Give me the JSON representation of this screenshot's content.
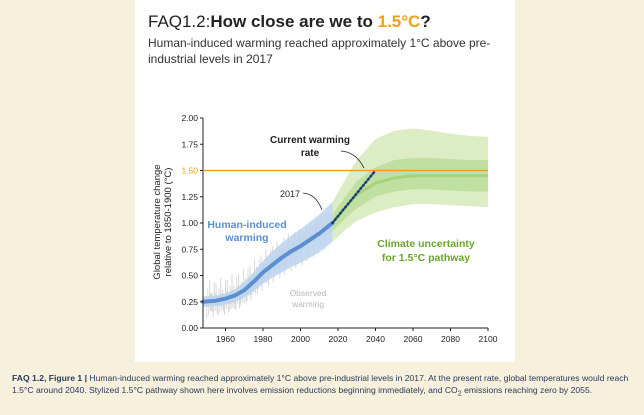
{
  "header": {
    "title_prefix": "FAQ1.2:",
    "title_question": "How close are we to ",
    "title_highlight": "1.5°C",
    "title_suffix": "?",
    "subtitle": "Human-induced warming reached approximately 1°C above pre-industrial levels in 2017"
  },
  "caption": {
    "label": "FAQ 1.2, Figure 1 |",
    "text": " Human-induced warming reached approximately 1°C above pre-industrial levels in 2017. At the present rate, global temperatures would reach 1.5°C around 2040. Stylized 1.5°C pathway shown here involves emission reductions beginning immediately, and CO",
    "sub": "2",
    "text2": " emissions reaching zero by 2055."
  },
  "colors": {
    "accent": "#f0a020",
    "human": "#5b8fd0",
    "human_band": "#bcd3ee",
    "pathway_text": "#6aa52a",
    "band_outer": "#dcedc6",
    "band_inner": "#bfe0a0",
    "band_center": "#a6d27c",
    "observed": "#d8d8d8",
    "dotted": "#1d3f70"
  },
  "chart_data": {
    "type": "line",
    "ylabel": "Global temperature change relative to 1850-1900 (°C)",
    "xlim": [
      1948,
      2100
    ],
    "ylim": [
      0,
      2.0
    ],
    "xticks": [
      "1960",
      "1980",
      "2000",
      "2020",
      "2040",
      "2060",
      "2080",
      "2100"
    ],
    "yticks": [
      "0.00",
      "0.25",
      "0.50",
      "0.75",
      "1.00",
      "1.25",
      "1.50",
      "1.75",
      "2.00"
    ],
    "reference_line": {
      "y": 1.5,
      "label": "1.50"
    },
    "annotations": {
      "current_rate": "Current warming rate",
      "year_2017": "2017",
      "human": "Human-induced warming",
      "climate_uncertainty": "Climate uncertainty for 1.5°C pathway",
      "observed": "Observed warming"
    },
    "series": [
      {
        "name": "Human-induced warming",
        "x": [
          1948,
          1955,
          1960,
          1965,
          1970,
          1975,
          1980,
          1985,
          1990,
          1995,
          2000,
          2005,
          2010,
          2017
        ],
        "y": [
          0.25,
          0.26,
          0.28,
          0.31,
          0.36,
          0.44,
          0.53,
          0.6,
          0.67,
          0.73,
          0.78,
          0.84,
          0.9,
          1.0
        ],
        "lo": [
          0.2,
          0.21,
          0.22,
          0.25,
          0.29,
          0.35,
          0.42,
          0.48,
          0.53,
          0.58,
          0.62,
          0.67,
          0.72,
          0.82
        ],
        "hi": [
          0.3,
          0.31,
          0.33,
          0.37,
          0.44,
          0.53,
          0.64,
          0.73,
          0.81,
          0.88,
          0.94,
          1.01,
          1.08,
          1.2
        ]
      },
      {
        "name": "Current warming rate",
        "x": [
          2017,
          2040
        ],
        "y": [
          1.0,
          1.5
        ]
      },
      {
        "name": "Climate uncertainty for 1.5°C pathway",
        "x": [
          2017,
          2025,
          2030,
          2040,
          2050,
          2060,
          2070,
          2080,
          2090,
          2100
        ],
        "lo_outer": [
          0.82,
          0.95,
          1.02,
          1.1,
          1.15,
          1.18,
          1.18,
          1.17,
          1.16,
          1.15
        ],
        "lo_inner": [
          0.92,
          1.06,
          1.14,
          1.25,
          1.3,
          1.32,
          1.32,
          1.31,
          1.3,
          1.3
        ],
        "mid": [
          1.0,
          1.17,
          1.27,
          1.38,
          1.43,
          1.45,
          1.45,
          1.45,
          1.45,
          1.45
        ],
        "hi_inner": [
          1.08,
          1.28,
          1.4,
          1.53,
          1.6,
          1.62,
          1.62,
          1.61,
          1.6,
          1.6
        ],
        "hi_outer": [
          1.2,
          1.45,
          1.6,
          1.8,
          1.88,
          1.9,
          1.88,
          1.85,
          1.83,
          1.82
        ]
      }
    ]
  }
}
